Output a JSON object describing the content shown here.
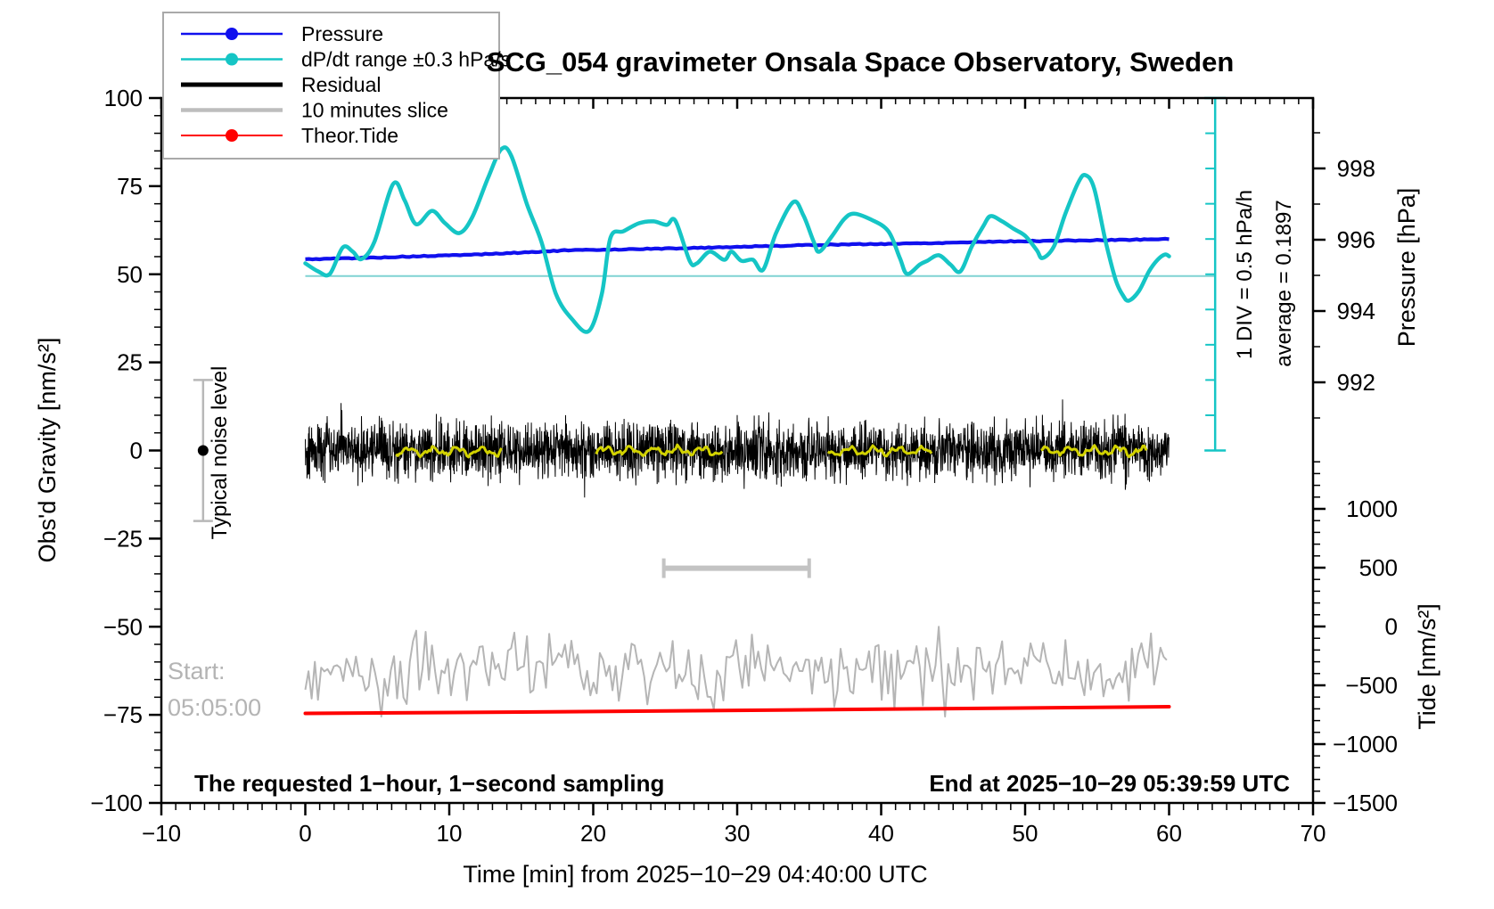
{
  "title": "SCG_054 gravimeter Onsala Space Observatory, Sweden",
  "legend": {
    "position": "top-left",
    "entries": [
      {
        "label": "Pressure",
        "color": "#1010ee",
        "marker": "dot",
        "line_width": 2.5
      },
      {
        "label": "dP/dt range ±0.3 hPa/s",
        "color": "#15c5c5",
        "marker": "dot",
        "line_width": 2.5
      },
      {
        "label": "Residual",
        "color": "#000000",
        "marker": "none",
        "line_width": 5
      },
      {
        "label": "10 minutes slice",
        "color": "#bdbdbd",
        "marker": "none",
        "line_width": 4.5
      },
      {
        "label": "Theor.Tide",
        "color": "#ff0000",
        "marker": "dot",
        "line_width": 2
      }
    ]
  },
  "axes": {
    "x": {
      "label": "Time [min] from 2025−10−29 04:40:00 UTC",
      "min": -10,
      "max": 70,
      "major_step": 10,
      "minor_step": 1,
      "tick_values": [
        -10,
        0,
        10,
        20,
        30,
        40,
        50,
        60,
        70
      ],
      "tick_labels": [
        "−10",
        "0",
        "10",
        "20",
        "30",
        "40",
        "50",
        "60",
        "70"
      ]
    },
    "y_left": {
      "label": "Obs'd Gravity [nm/s²]",
      "min": -100,
      "max": 100,
      "major_step": 25,
      "minor_step": 5,
      "tick_values": [
        -100,
        -75,
        -50,
        -25,
        0,
        25,
        50,
        75,
        100
      ],
      "tick_labels": [
        "−100",
        "−75",
        "−50",
        "−25",
        "0",
        "25",
        "50",
        "75",
        "100"
      ]
    },
    "y_pressure": {
      "label": "Pressure [hPa]",
      "minor_step": 1,
      "tick_values": [
        992,
        994,
        996,
        998
      ],
      "tick_labels": [
        "992",
        "994",
        "996",
        "998"
      ]
    },
    "y_tide": {
      "label": "Tide [nm/s²]",
      "major_step": 500,
      "minor_step": 100,
      "tick_values": [
        -1500,
        -1000,
        -500,
        0,
        500,
        1000
      ],
      "tick_labels": [
        "−1500",
        "−1000",
        "−500",
        "0",
        "500",
        "1000"
      ]
    }
  },
  "annotations": {
    "start_line1": "Start:",
    "start_line2": "05:05:00",
    "noise_label": "Typical noise level",
    "bottom_left": "The requested 1−hour, 1−second sampling",
    "bottom_right": "End at 2025−10−29 05:39:59 UTC",
    "div_label": "1 DIV = 0.5 hPa/h",
    "avg_label": "average = 0.1897"
  },
  "chart_data": {
    "type": "line",
    "xlabel": "Time [min] from 2025−10−29 04:40:00 UTC",
    "x_range": [
      -10,
      70
    ],
    "y_left_range": [
      -100,
      100
    ],
    "grid": false,
    "legend_position": "top-left",
    "series": [
      {
        "name": "Pressure",
        "axis": "pressure_hPa",
        "color": "#1010ee",
        "points": [
          [
            0,
            995.45
          ],
          [
            5,
            995.5
          ],
          [
            10,
            995.56
          ],
          [
            14,
            995.62
          ],
          [
            18,
            995.7
          ],
          [
            22,
            995.73
          ],
          [
            26,
            995.76
          ],
          [
            30,
            995.8
          ],
          [
            34,
            995.84
          ],
          [
            36,
            995.86
          ],
          [
            40,
            995.88
          ],
          [
            44,
            995.91
          ],
          [
            48,
            995.95
          ],
          [
            52,
            995.97
          ],
          [
            56,
            995.99
          ],
          [
            60,
            996.02
          ]
        ]
      },
      {
        "name": "dP/dt",
        "axis": "gravity_overlay",
        "color": "#15c5c5",
        "scale_note": "1 DIV = 0.5 hPa/h, average 0.1897 hPa/h plotted at overlay level 49.5",
        "points": [
          [
            0,
            53.1
          ],
          [
            0.9,
            50.8
          ],
          [
            1.7,
            50.1
          ],
          [
            2.6,
            57.6
          ],
          [
            3.3,
            56.4
          ],
          [
            3.9,
            54.3
          ],
          [
            4.8,
            59.2
          ],
          [
            6.1,
            75.6
          ],
          [
            6.9,
            71.0
          ],
          [
            7.7,
            64.2
          ],
          [
            8.8,
            68.0
          ],
          [
            9.7,
            64.5
          ],
          [
            10.7,
            61.7
          ],
          [
            11.6,
            66.2
          ],
          [
            12.7,
            77.4
          ],
          [
            13.6,
            85.4
          ],
          [
            14.3,
            83.7
          ],
          [
            15.4,
            69.8
          ],
          [
            16.4,
            59.2
          ],
          [
            17.4,
            44.5
          ],
          [
            18.5,
            37.4
          ],
          [
            19.7,
            33.9
          ],
          [
            20.6,
            44.5
          ],
          [
            21.2,
            60.4
          ],
          [
            22.1,
            62.2
          ],
          [
            23.2,
            64.5
          ],
          [
            24.2,
            65.0
          ],
          [
            25.1,
            64.0
          ],
          [
            25.7,
            65.2
          ],
          [
            26.7,
            53.8
          ],
          [
            27.2,
            53.1
          ],
          [
            28.1,
            56.4
          ],
          [
            29.1,
            54.1
          ],
          [
            29.6,
            56.4
          ],
          [
            30.3,
            53.8
          ],
          [
            31.1,
            54.1
          ],
          [
            31.8,
            51.3
          ],
          [
            32.7,
            61.7
          ],
          [
            33.9,
            70.5
          ],
          [
            34.6,
            66.7
          ],
          [
            35.3,
            59.4
          ],
          [
            35.7,
            56.4
          ],
          [
            36.6,
            60.9
          ],
          [
            37.4,
            65.5
          ],
          [
            38.1,
            67.2
          ],
          [
            39.3,
            65.5
          ],
          [
            40.5,
            62.2
          ],
          [
            41.3,
            54.6
          ],
          [
            41.8,
            50.1
          ],
          [
            42.7,
            52.8
          ],
          [
            43.2,
            53.8
          ],
          [
            44.0,
            55.4
          ],
          [
            44.8,
            52.8
          ],
          [
            45.5,
            50.8
          ],
          [
            46.3,
            57.9
          ],
          [
            47.1,
            63.7
          ],
          [
            47.6,
            66.5
          ],
          [
            48.4,
            65.0
          ],
          [
            49.2,
            62.9
          ],
          [
            50.0,
            60.9
          ],
          [
            50.8,
            56.9
          ],
          [
            51.2,
            54.6
          ],
          [
            52.0,
            57.9
          ],
          [
            52.8,
            67.2
          ],
          [
            53.7,
            76.1
          ],
          [
            54.2,
            78.1
          ],
          [
            54.8,
            74.3
          ],
          [
            55.6,
            59.2
          ],
          [
            56.3,
            48.3
          ],
          [
            56.8,
            44.0
          ],
          [
            57.2,
            42.5
          ],
          [
            57.9,
            45.2
          ],
          [
            58.6,
            50.8
          ],
          [
            59.2,
            54.1
          ],
          [
            59.7,
            55.6
          ],
          [
            60,
            55.1
          ]
        ],
        "average_line": {
          "level": 49.5,
          "t1": 0,
          "t2": 63.2
        },
        "scale_bar": {
          "t": 63.2,
          "g_top": 100,
          "g_bottom": 0,
          "divisions": 10
        }
      },
      {
        "name": "Residual",
        "axis": "gravity",
        "color": "#000000",
        "summary": {
          "t1": 0,
          "t2": 60,
          "mean": 0,
          "typical_amplitude": 8,
          "max_amplitude": 14
        }
      },
      {
        "name": "Residual smoothed",
        "axis": "gravity",
        "color": "#d2d200",
        "segments_t": [
          [
            6.3,
            13.7
          ],
          [
            20.2,
            29.0
          ],
          [
            36.3,
            43.5
          ],
          [
            51.1,
            58.5
          ]
        ],
        "summary": {
          "mean": -0.2,
          "amplitude": 1.4
        }
      },
      {
        "name": "10 minutes slice",
        "axis": "gravity",
        "color": "#b5b5b5",
        "summary": {
          "t1": 0,
          "t2": 60,
          "mean": -62,
          "typical_amplitude": 6,
          "max_low": -75,
          "max_high": -50
        },
        "length_bar": {
          "t1": 24.9,
          "t2": 35.0,
          "g": -33.4
        }
      },
      {
        "name": "Theor.Tide",
        "axis": "tide",
        "color": "#ff0000",
        "points_tide": [
          [
            0,
            -739
          ],
          [
            15,
            -727
          ],
          [
            30,
            -713
          ],
          [
            45,
            -698
          ],
          [
            60,
            -682
          ]
        ]
      },
      {
        "name": "Typical noise level",
        "axis": "gravity",
        "type": "errorbar",
        "t": -7.1,
        "center": 0,
        "half_range": 20
      }
    ]
  }
}
